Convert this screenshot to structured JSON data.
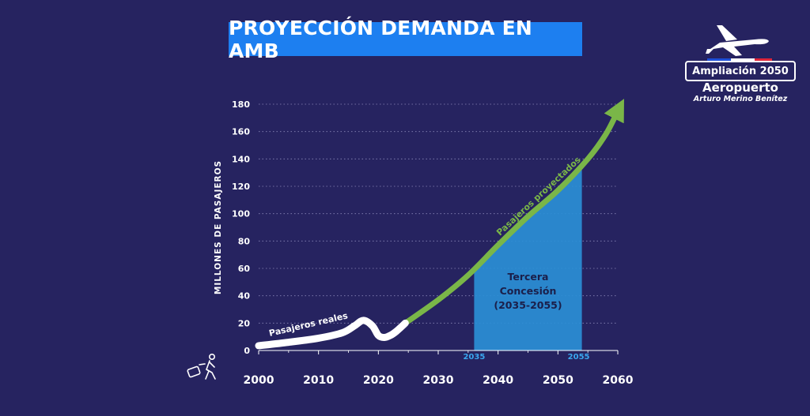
{
  "title": "PROYECCIÓN DEMANDA EN AMB",
  "logo": {
    "line1": "Ampliación 2050",
    "line2": "Aeropuerto",
    "line3": "Arturo Merino Benítez",
    "icon": "airplane-icon",
    "flag_colors": [
      "#1d4fd8",
      "#ffffff",
      "#e0263a"
    ]
  },
  "travel_icon": "traveler-luggage-icon",
  "chart_data": {
    "type": "line",
    "title": "PROYECCIÓN DEMANDA EN AMB",
    "xlabel": "",
    "ylabel": "MILLONES DE PASAJEROS",
    "xlim": [
      2000,
      2060
    ],
    "ylim": [
      0,
      180
    ],
    "x_ticks": [
      2000,
      2010,
      2020,
      2030,
      2040,
      2050,
      2060
    ],
    "y_ticks": [
      0,
      20,
      40,
      60,
      80,
      100,
      120,
      140,
      160,
      180
    ],
    "grid": "horizontal-dotted",
    "series": [
      {
        "name": "Pasajeros reales",
        "color": "#ffffff",
        "x": [
          2000,
          2005,
          2010,
          2014,
          2016,
          2017.5,
          2019,
          2020,
          2021,
          2022,
          2023,
          2024.5
        ],
        "y": [
          3.5,
          6,
          9,
          13,
          18,
          22,
          18,
          11,
          9.5,
          11,
          14,
          20
        ]
      },
      {
        "name": "Pasajeros proyectados",
        "color": "#7ab648",
        "x": [
          2024.5,
          2030,
          2035,
          2040,
          2045,
          2050,
          2055,
          2058,
          2060
        ],
        "y": [
          20,
          37,
          55,
          77,
          98,
          117,
          140,
          158,
          175
        ]
      }
    ],
    "annotations": [
      {
        "label": "Tercera\nConcesión\n(2035-2055)",
        "type": "shaded-region",
        "x_start": 2036,
        "x_end": 2054,
        "tick_labels": [
          "2035",
          "2055"
        ],
        "color": "#2a8fd6"
      }
    ]
  }
}
